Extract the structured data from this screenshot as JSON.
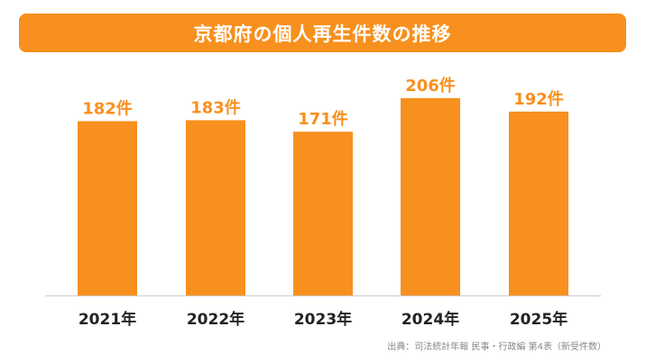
{
  "colors": {
    "accent": "#f7901e",
    "axis": "#cccccc",
    "tick_text": "#222222"
  },
  "chart_data": {
    "type": "bar",
    "title": "京都府の個人再生件数の推移",
    "categories": [
      "2021年",
      "2022年",
      "2023年",
      "2024年",
      "2025年"
    ],
    "values": [
      182,
      183,
      171,
      206,
      192
    ],
    "data_labels": [
      "182件",
      "183件",
      "171件",
      "206件",
      "192件"
    ],
    "xlabel": "",
    "ylabel": "",
    "ylim": [
      0,
      206
    ],
    "grid": false,
    "legend": "none"
  },
  "source": "出典：司法統計年報 民事・行政編 第4表（新受件数）"
}
